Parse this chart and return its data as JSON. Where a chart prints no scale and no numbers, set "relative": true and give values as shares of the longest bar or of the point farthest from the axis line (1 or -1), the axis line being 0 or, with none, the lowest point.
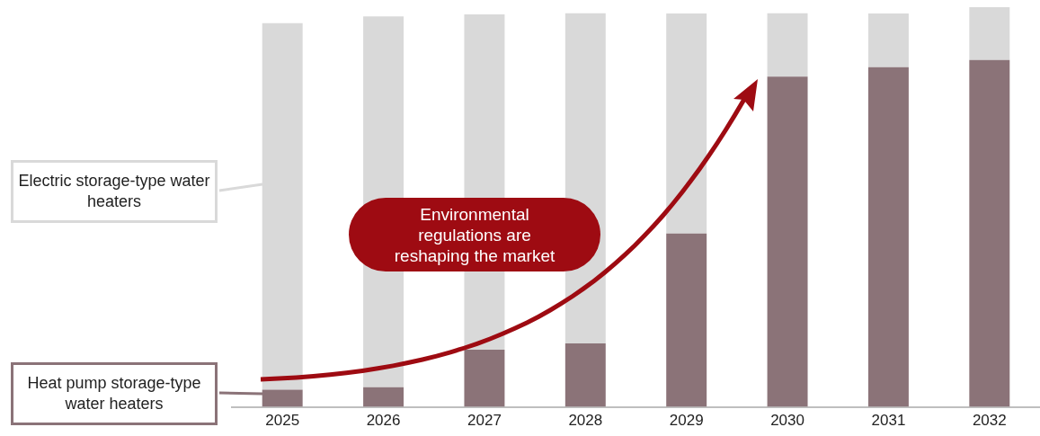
{
  "chart_data": {
    "type": "bar",
    "stacked": true,
    "relative": true,
    "legend": "left",
    "categories": [
      "2025",
      "2026",
      "2027",
      "2028",
      "2029",
      "2030",
      "2031",
      "2032"
    ],
    "series": [
      {
        "name": "Heat pump storage-type water heaters",
        "color": "#8b7378",
        "values": [
          0.043,
          0.049,
          0.143,
          0.159,
          0.434,
          0.826,
          0.85,
          0.868
        ]
      },
      {
        "name": "Electric storage-type water heaters",
        "color": "#d9d9d9",
        "values": [
          0.917,
          0.928,
          0.839,
          0.826,
          0.55,
          0.159,
          0.134,
          0.132
        ]
      }
    ],
    "annotations": [
      "Environmental regulations are reshaping the market"
    ]
  }
}
